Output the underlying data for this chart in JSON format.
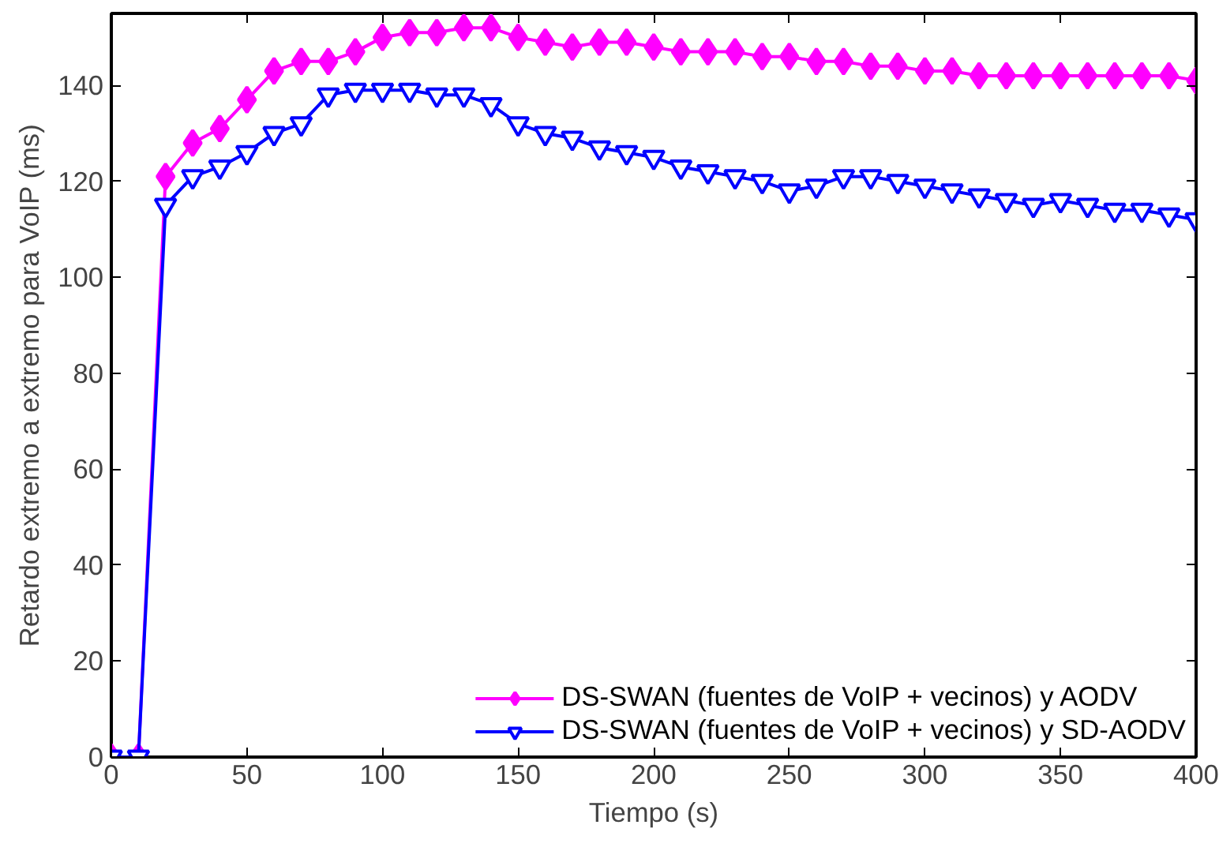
{
  "chart_data": {
    "type": "line",
    "xlabel": "Tiempo (s)",
    "ylabel": "Retardo extremo a extremo para VoIP (ms)",
    "x": [
      0,
      10,
      20,
      30,
      40,
      50,
      60,
      70,
      80,
      90,
      100,
      110,
      120,
      130,
      140,
      150,
      160,
      170,
      180,
      190,
      200,
      210,
      220,
      230,
      240,
      250,
      260,
      270,
      280,
      290,
      300,
      310,
      320,
      330,
      340,
      350,
      360,
      370,
      380,
      390,
      400
    ],
    "series": [
      {
        "name": "DS-SWAN (fuentes de VoIP + vecinos) y AODV",
        "color": "#ff00ff",
        "marker": "diamond",
        "values": [
          0,
          0,
          121,
          128,
          131,
          137,
          143,
          145,
          145,
          147,
          150,
          151,
          151,
          152,
          152,
          150,
          149,
          148,
          149,
          149,
          148,
          147,
          147,
          147,
          146,
          146,
          145,
          145,
          144,
          144,
          143,
          143,
          142,
          142,
          142,
          142,
          142,
          142,
          142,
          142,
          141
        ]
      },
      {
        "name": "DS-SWAN (fuentes de VoIP + vecinos) y SD-AODV",
        "color": "#0000ff",
        "marker": "triangle",
        "values": [
          0,
          0,
          115,
          121,
          123,
          126,
          130,
          132,
          138,
          139,
          139,
          139,
          138,
          138,
          136,
          132,
          130,
          129,
          127,
          126,
          125,
          123,
          122,
          121,
          120,
          118,
          119,
          121,
          121,
          120,
          119,
          118,
          117,
          116,
          115,
          116,
          115,
          114,
          114,
          113,
          112
        ]
      }
    ],
    "xlim": [
      0,
      400
    ],
    "ylim": [
      0,
      155
    ],
    "xticks": [
      0,
      50,
      100,
      150,
      200,
      250,
      300,
      350,
      400
    ],
    "yticks": [
      0,
      20,
      40,
      60,
      80,
      100,
      120,
      140
    ],
    "grid": false,
    "legend": "bottom right",
    "line_style": "solid"
  }
}
